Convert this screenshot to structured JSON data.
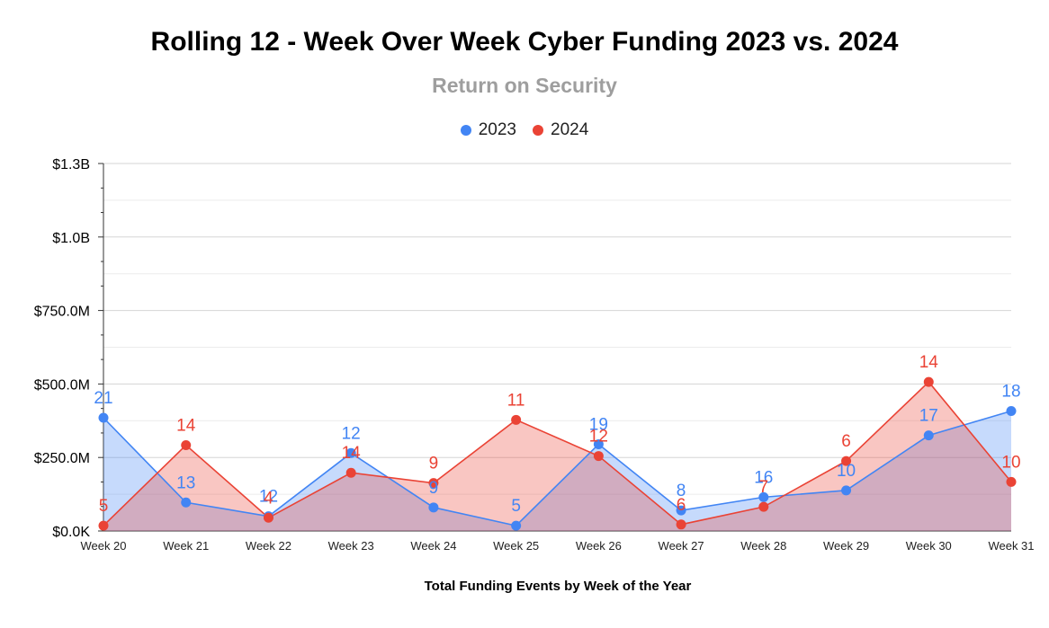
{
  "chart_data": {
    "type": "area",
    "title": "Rolling 12 - Week Over Week Cyber Funding 2023 vs. 2024",
    "subtitle": "Return on Security",
    "xlabel": "Total Funding Events by Week of the Year",
    "ylabel": "",
    "categories": [
      "Week 20",
      "Week 21",
      "Week 22",
      "Week 23",
      "Week 24",
      "Week 25",
      "Week 26",
      "Week 27",
      "Week 28",
      "Week 29",
      "Week 30",
      "Week 31"
    ],
    "ylim": [
      0,
      1300000000
    ],
    "y_ticks": [
      {
        "value": 0,
        "label": "$0.0K"
      },
      {
        "value": 250000000,
        "label": "$250.0M"
      },
      {
        "value": 500000000,
        "label": "$500.0M"
      },
      {
        "value": 750000000,
        "label": "$750.0M"
      },
      {
        "value": 1000000000,
        "label": "$1.0B"
      },
      {
        "value": 1250000000,
        "label": "$1.3B"
      }
    ],
    "grid": true,
    "legend_position": "top",
    "series": [
      {
        "name": "2023",
        "color": "#4285f4",
        "fill": "rgba(66,133,244,0.30)",
        "values": [
          385000000,
          97000000,
          50000000,
          265000000,
          80000000,
          18000000,
          295000000,
          70000000,
          115000000,
          138000000,
          325000000,
          408000000
        ],
        "data_labels": [
          "21",
          "13",
          "12",
          "12",
          "9",
          "5",
          "19",
          "8",
          "16",
          "10",
          "17",
          "18"
        ]
      },
      {
        "name": "2024",
        "color": "#ea4335",
        "fill": "rgba(234,67,53,0.30)",
        "values": [
          18000000,
          292000000,
          45000000,
          198000000,
          163000000,
          378000000,
          255000000,
          22000000,
          82000000,
          238000000,
          507000000,
          167000000
        ],
        "data_labels": [
          "5",
          "14",
          "4",
          "14",
          "9",
          "11",
          "12",
          "6",
          "7",
          "6",
          "14",
          "10"
        ]
      }
    ]
  }
}
